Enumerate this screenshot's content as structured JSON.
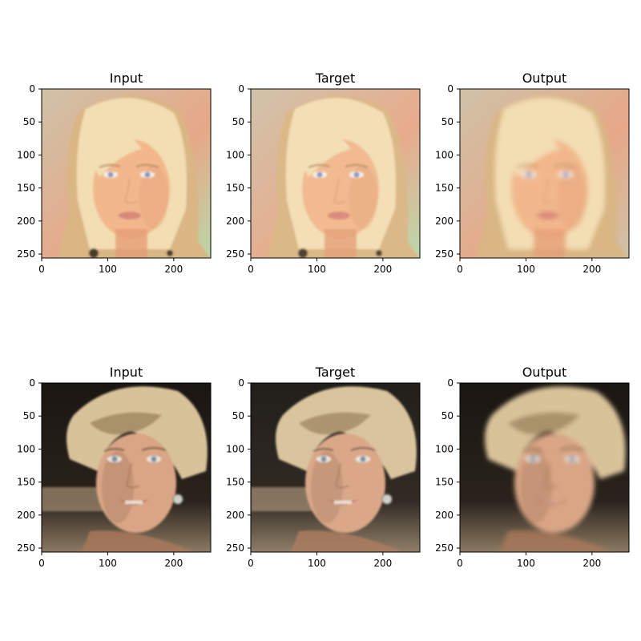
{
  "panels": [
    {
      "row": 0,
      "col": 0,
      "title": "Input",
      "subject": "blonde-woman",
      "variant": "input"
    },
    {
      "row": 0,
      "col": 1,
      "title": "Target",
      "subject": "blonde-woman",
      "variant": "target"
    },
    {
      "row": 0,
      "col": 2,
      "title": "Output",
      "subject": "blonde-woman",
      "variant": "output"
    },
    {
      "row": 1,
      "col": 0,
      "title": "Input",
      "subject": "older-woman",
      "variant": "input"
    },
    {
      "row": 1,
      "col": 1,
      "title": "Target",
      "subject": "older-woman",
      "variant": "target"
    },
    {
      "row": 1,
      "col": 2,
      "title": "Output",
      "subject": "older-woman",
      "variant": "output"
    }
  ],
  "axes": {
    "xlim": [
      0,
      256
    ],
    "ylim_inverted": [
      256,
      0
    ],
    "xticks": [
      0,
      100,
      200
    ],
    "yticks": [
      0,
      50,
      100,
      150,
      200,
      250
    ]
  },
  "colors": {
    "blonde-woman": {
      "bg_top": "#cfc2a8",
      "bg_bottom": "#e7a888",
      "bg_right": "#b9d7a8",
      "hair": "#f3ddb2",
      "hair_shadow": "#d9b683",
      "skin": "#f2b88c",
      "skin_shadow": "#e39e74",
      "lips": "#d9897a",
      "eyes": "#8d93bb",
      "brows": "#b58a5e",
      "jewel": "#4a3a2a"
    },
    "older-woman": {
      "bg_top": "#1a1612",
      "bg_bottom": "#8c7a62",
      "bg_right": "#2a231c",
      "hair": "#d8c29a",
      "hair_shadow": "#8a6f4d",
      "skin": "#d9a585",
      "skin_shadow": "#a8775a",
      "lips": "#b86e5f",
      "eyes": "#6f8ea3",
      "brows": "#6a4e34",
      "jewel": "#cfcfc8"
    }
  }
}
